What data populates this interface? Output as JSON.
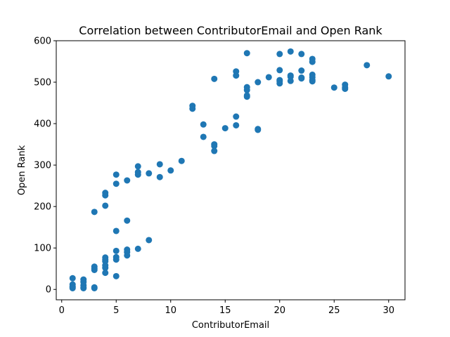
{
  "chart_data": {
    "type": "scatter",
    "title": "Correlation between ContributorEmail and Open Rank",
    "xlabel": "ContributorEmail",
    "ylabel": "Open Rank",
    "xlim": [
      -0.5,
      31.5
    ],
    "ylim": [
      -25,
      600
    ],
    "xticks": [
      0,
      5,
      10,
      15,
      20,
      25,
      30
    ],
    "yticks": [
      0,
      100,
      200,
      300,
      400,
      500,
      600
    ],
    "grid": false,
    "color": "#1f77b4",
    "points": [
      [
        1,
        27
      ],
      [
        1,
        12
      ],
      [
        1,
        7
      ],
      [
        1,
        5
      ],
      [
        1,
        3
      ],
      [
        2,
        24
      ],
      [
        2,
        18
      ],
      [
        2,
        10
      ],
      [
        2,
        5
      ],
      [
        2,
        3
      ],
      [
        3,
        187
      ],
      [
        3,
        55
      ],
      [
        3,
        50
      ],
      [
        3,
        47
      ],
      [
        3,
        5
      ],
      [
        3,
        3
      ],
      [
        4,
        233
      ],
      [
        4,
        227
      ],
      [
        4,
        202
      ],
      [
        4,
        77
      ],
      [
        4,
        72
      ],
      [
        4,
        68
      ],
      [
        4,
        58
      ],
      [
        4,
        52
      ],
      [
        4,
        40
      ],
      [
        5,
        277
      ],
      [
        5,
        255
      ],
      [
        5,
        141
      ],
      [
        5,
        93
      ],
      [
        5,
        78
      ],
      [
        5,
        72
      ],
      [
        5,
        32
      ],
      [
        6,
        263
      ],
      [
        6,
        166
      ],
      [
        6,
        96
      ],
      [
        6,
        90
      ],
      [
        6,
        82
      ],
      [
        7,
        297
      ],
      [
        7,
        283
      ],
      [
        7,
        277
      ],
      [
        7,
        98
      ],
      [
        8,
        280
      ],
      [
        8,
        119
      ],
      [
        9,
        302
      ],
      [
        9,
        271
      ],
      [
        10,
        287
      ],
      [
        11,
        310
      ],
      [
        12,
        443
      ],
      [
        12,
        436
      ],
      [
        13,
        398
      ],
      [
        13,
        368
      ],
      [
        14,
        508
      ],
      [
        14,
        350
      ],
      [
        14,
        346
      ],
      [
        14,
        334
      ],
      [
        15,
        389
      ],
      [
        16,
        526
      ],
      [
        16,
        516
      ],
      [
        16,
        417
      ],
      [
        16,
        396
      ],
      [
        17,
        570
      ],
      [
        17,
        488
      ],
      [
        17,
        481
      ],
      [
        17,
        468
      ],
      [
        17,
        465
      ],
      [
        18,
        500
      ],
      [
        18,
        387
      ],
      [
        18,
        385
      ],
      [
        19,
        512
      ],
      [
        20,
        568
      ],
      [
        20,
        529
      ],
      [
        20,
        505
      ],
      [
        20,
        502
      ],
      [
        20,
        497
      ],
      [
        21,
        574
      ],
      [
        21,
        516
      ],
      [
        21,
        513
      ],
      [
        21,
        503
      ],
      [
        22,
        568
      ],
      [
        22,
        528
      ],
      [
        22,
        511
      ],
      [
        22,
        509
      ],
      [
        23,
        556
      ],
      [
        23,
        549
      ],
      [
        23,
        518
      ],
      [
        23,
        512
      ],
      [
        23,
        505
      ],
      [
        23,
        502
      ],
      [
        25,
        487
      ],
      [
        26,
        494
      ],
      [
        26,
        487
      ],
      [
        26,
        484
      ],
      [
        28,
        541
      ],
      [
        30,
        514
      ]
    ]
  }
}
